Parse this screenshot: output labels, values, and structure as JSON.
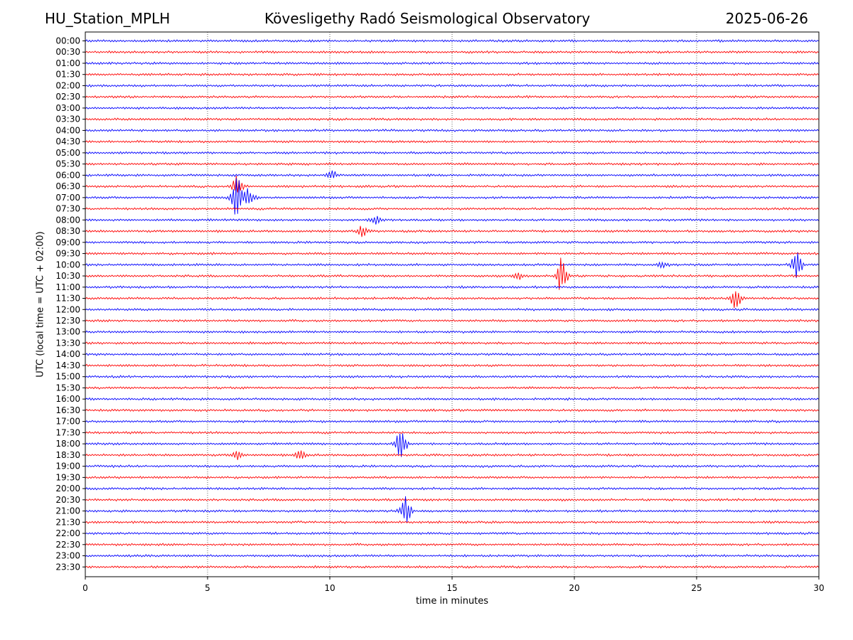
{
  "header": {
    "station": "HU_Station_MPLH",
    "observatory": "Kövesligethy Radó Seismological Observatory",
    "date": "2025-06-26"
  },
  "chart_data": {
    "type": "line",
    "title": "Kövesligethy Radó Seismological Observatory",
    "xlabel": "time in minutes",
    "ylabel": "UTC (local time = UTC + 02:00)",
    "xlim": [
      0,
      30
    ],
    "x_ticks": [
      0,
      5,
      10,
      15,
      20,
      25,
      30
    ],
    "row_labels": [
      "00:00",
      "00:30",
      "01:00",
      "01:30",
      "02:00",
      "02:30",
      "03:00",
      "03:30",
      "04:00",
      "04:30",
      "05:00",
      "05:30",
      "06:00",
      "06:30",
      "07:00",
      "07:30",
      "08:00",
      "08:30",
      "09:00",
      "09:30",
      "10:00",
      "10:30",
      "11:00",
      "11:30",
      "12:00",
      "12:30",
      "13:00",
      "13:30",
      "14:00",
      "14:30",
      "15:00",
      "15:30",
      "16:00",
      "16:30",
      "17:00",
      "17:30",
      "18:00",
      "18:30",
      "19:00",
      "19:30",
      "20:00",
      "20:30",
      "21:00",
      "21:30",
      "22:00",
      "22:30",
      "23:00",
      "23:30"
    ],
    "trace_colors": [
      "#0000ff",
      "#ff0000"
    ],
    "grid": "vertical dotted at major ticks",
    "events": [
      {
        "row": "06:00",
        "minute": 10.1,
        "amplitude": 0.5
      },
      {
        "row": "06:30",
        "minute": 6.2,
        "amplitude": 1.2
      },
      {
        "row": "07:00",
        "minute": 6.2,
        "amplitude": 2.4
      },
      {
        "row": "07:00",
        "minute": 6.7,
        "amplitude": 1.1
      },
      {
        "row": "08:00",
        "minute": 11.9,
        "amplitude": 0.6
      },
      {
        "row": "08:30",
        "minute": 11.3,
        "amplitude": 0.6
      },
      {
        "row": "10:00",
        "minute": 29.1,
        "amplitude": 1.6
      },
      {
        "row": "10:00",
        "minute": 23.6,
        "amplitude": 0.4
      },
      {
        "row": "10:30",
        "minute": 19.5,
        "amplitude": 2.2
      },
      {
        "row": "10:30",
        "minute": 17.7,
        "amplitude": 0.4
      },
      {
        "row": "11:30",
        "minute": 26.6,
        "amplitude": 1.2
      },
      {
        "row": "18:00",
        "minute": 12.9,
        "amplitude": 2.5
      },
      {
        "row": "18:30",
        "minute": 6.2,
        "amplitude": 0.5
      },
      {
        "row": "18:30",
        "minute": 8.8,
        "amplitude": 0.5
      },
      {
        "row": "21:00",
        "minute": 13.1,
        "amplitude": 1.7
      }
    ]
  }
}
